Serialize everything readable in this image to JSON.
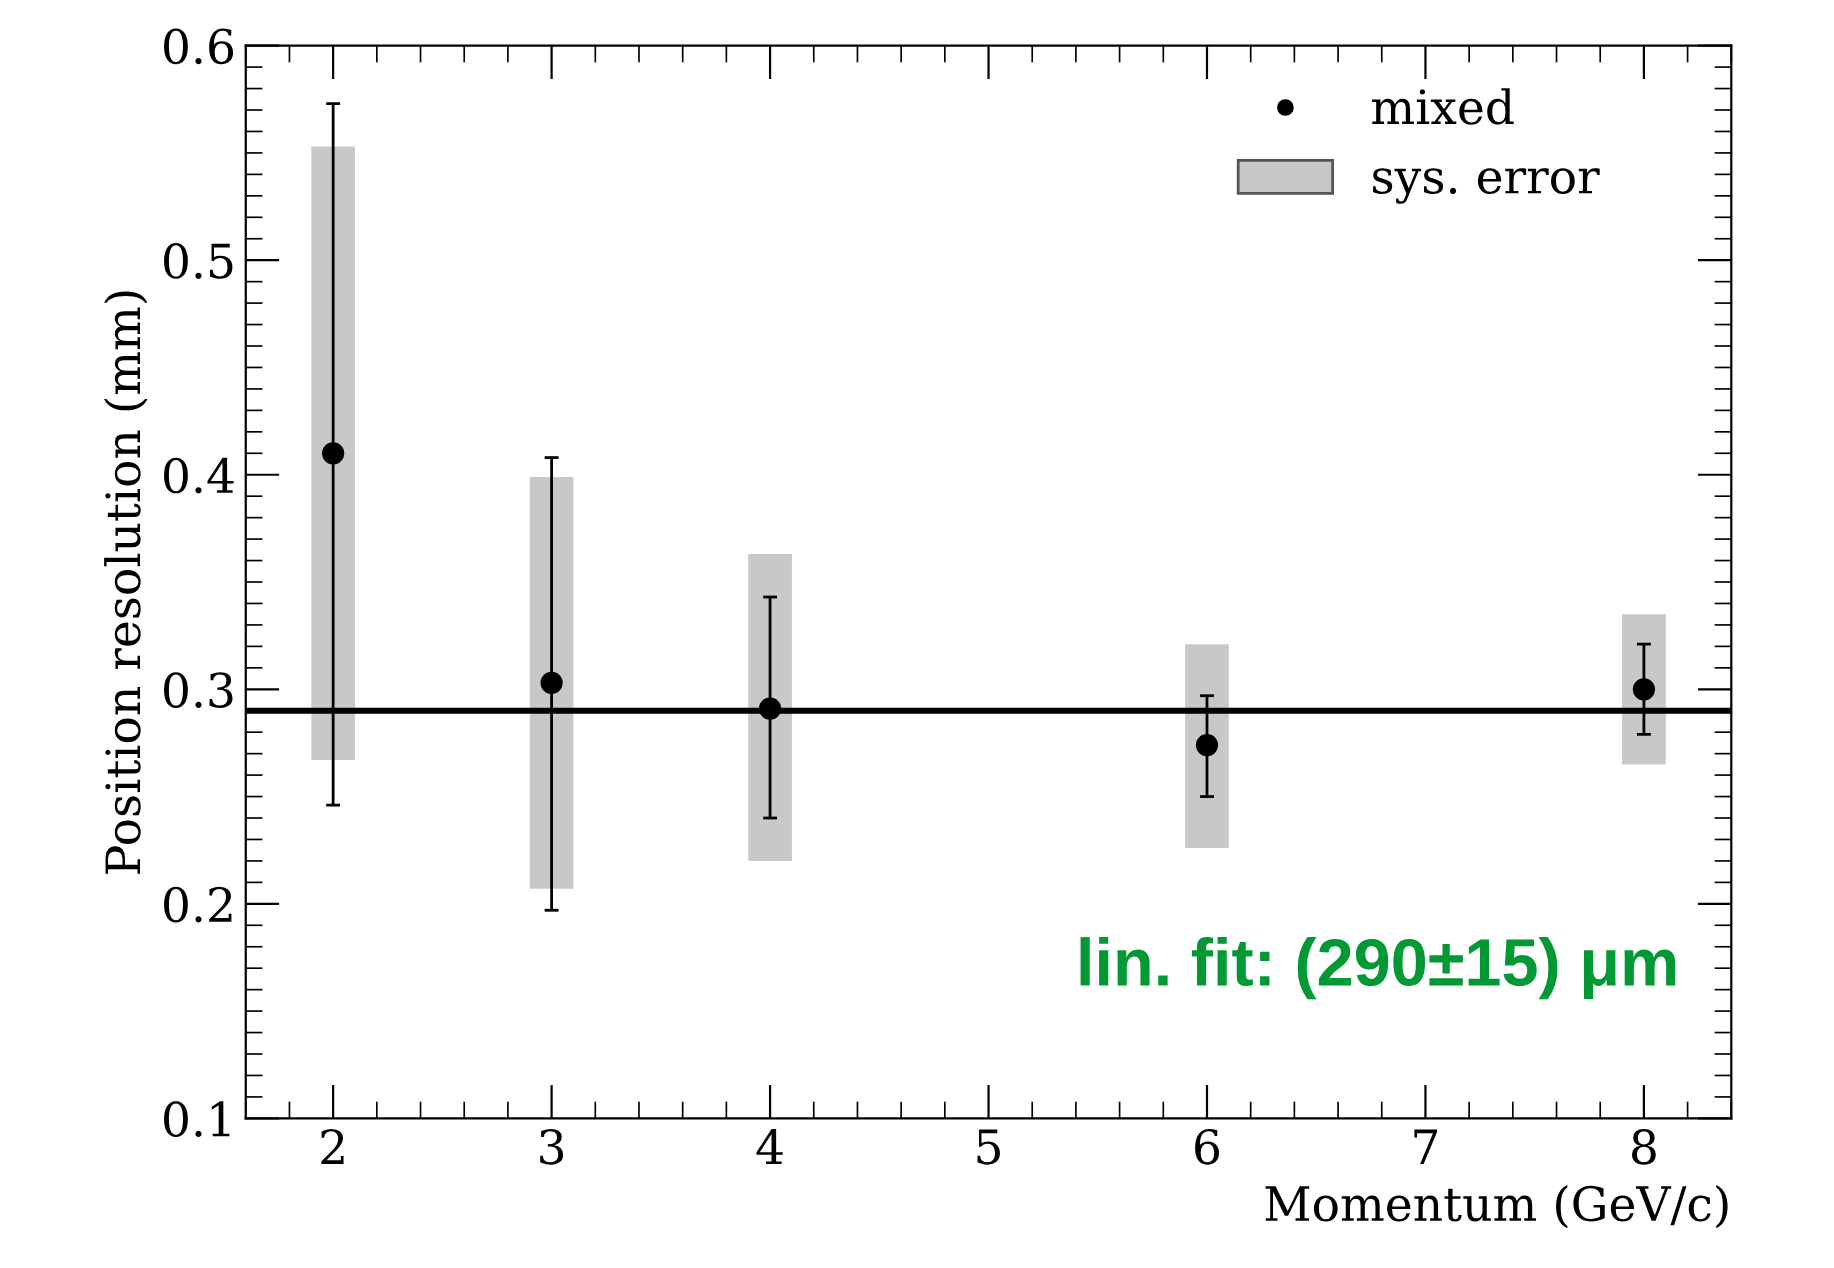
{
  "chart_data": {
    "type": "scatter",
    "xlabel": "Momentum (GeV/c)",
    "ylabel": "Position resolution (mm)",
    "xlim": [
      1.6,
      8.4
    ],
    "xticks": [
      2,
      3,
      4,
      5,
      6,
      7,
      8
    ],
    "ylim": [
      0.1,
      0.6
    ],
    "yticks": [
      0.1,
      0.2,
      0.3,
      0.4,
      0.5,
      0.6
    ],
    "grid": false,
    "legend": "top right",
    "series": [
      {
        "type": "bar",
        "name": "sys. error",
        "color": "#c8c8c8",
        "x": [
          2,
          3,
          4,
          6,
          8
        ],
        "base": [
          0.267,
          0.207,
          0.22,
          0.226,
          0.265
        ],
        "values": [
          0.286,
          0.192,
          0.143,
          0.095,
          0.07
        ]
      },
      {
        "type": "line",
        "marker": "none",
        "color": "#000000",
        "x": [
          1.6,
          8.4
        ],
        "values": [
          0.29,
          0.29
        ]
      },
      {
        "marker": "circle",
        "name": "mixed",
        "color": "#000000",
        "x": [
          2,
          3,
          4,
          6,
          8
        ],
        "values": [
          0.41,
          0.303,
          0.291,
          0.274,
          0.3
        ],
        "errors": [
          [
            0.246,
            0.573
          ],
          [
            0.197,
            0.408
          ],
          [
            0.24,
            0.343
          ],
          [
            0.25,
            0.297
          ],
          [
            0.279,
            0.321
          ]
        ]
      }
    ],
    "annotations": [
      "lin. fit: (290±15) μm"
    ]
  }
}
